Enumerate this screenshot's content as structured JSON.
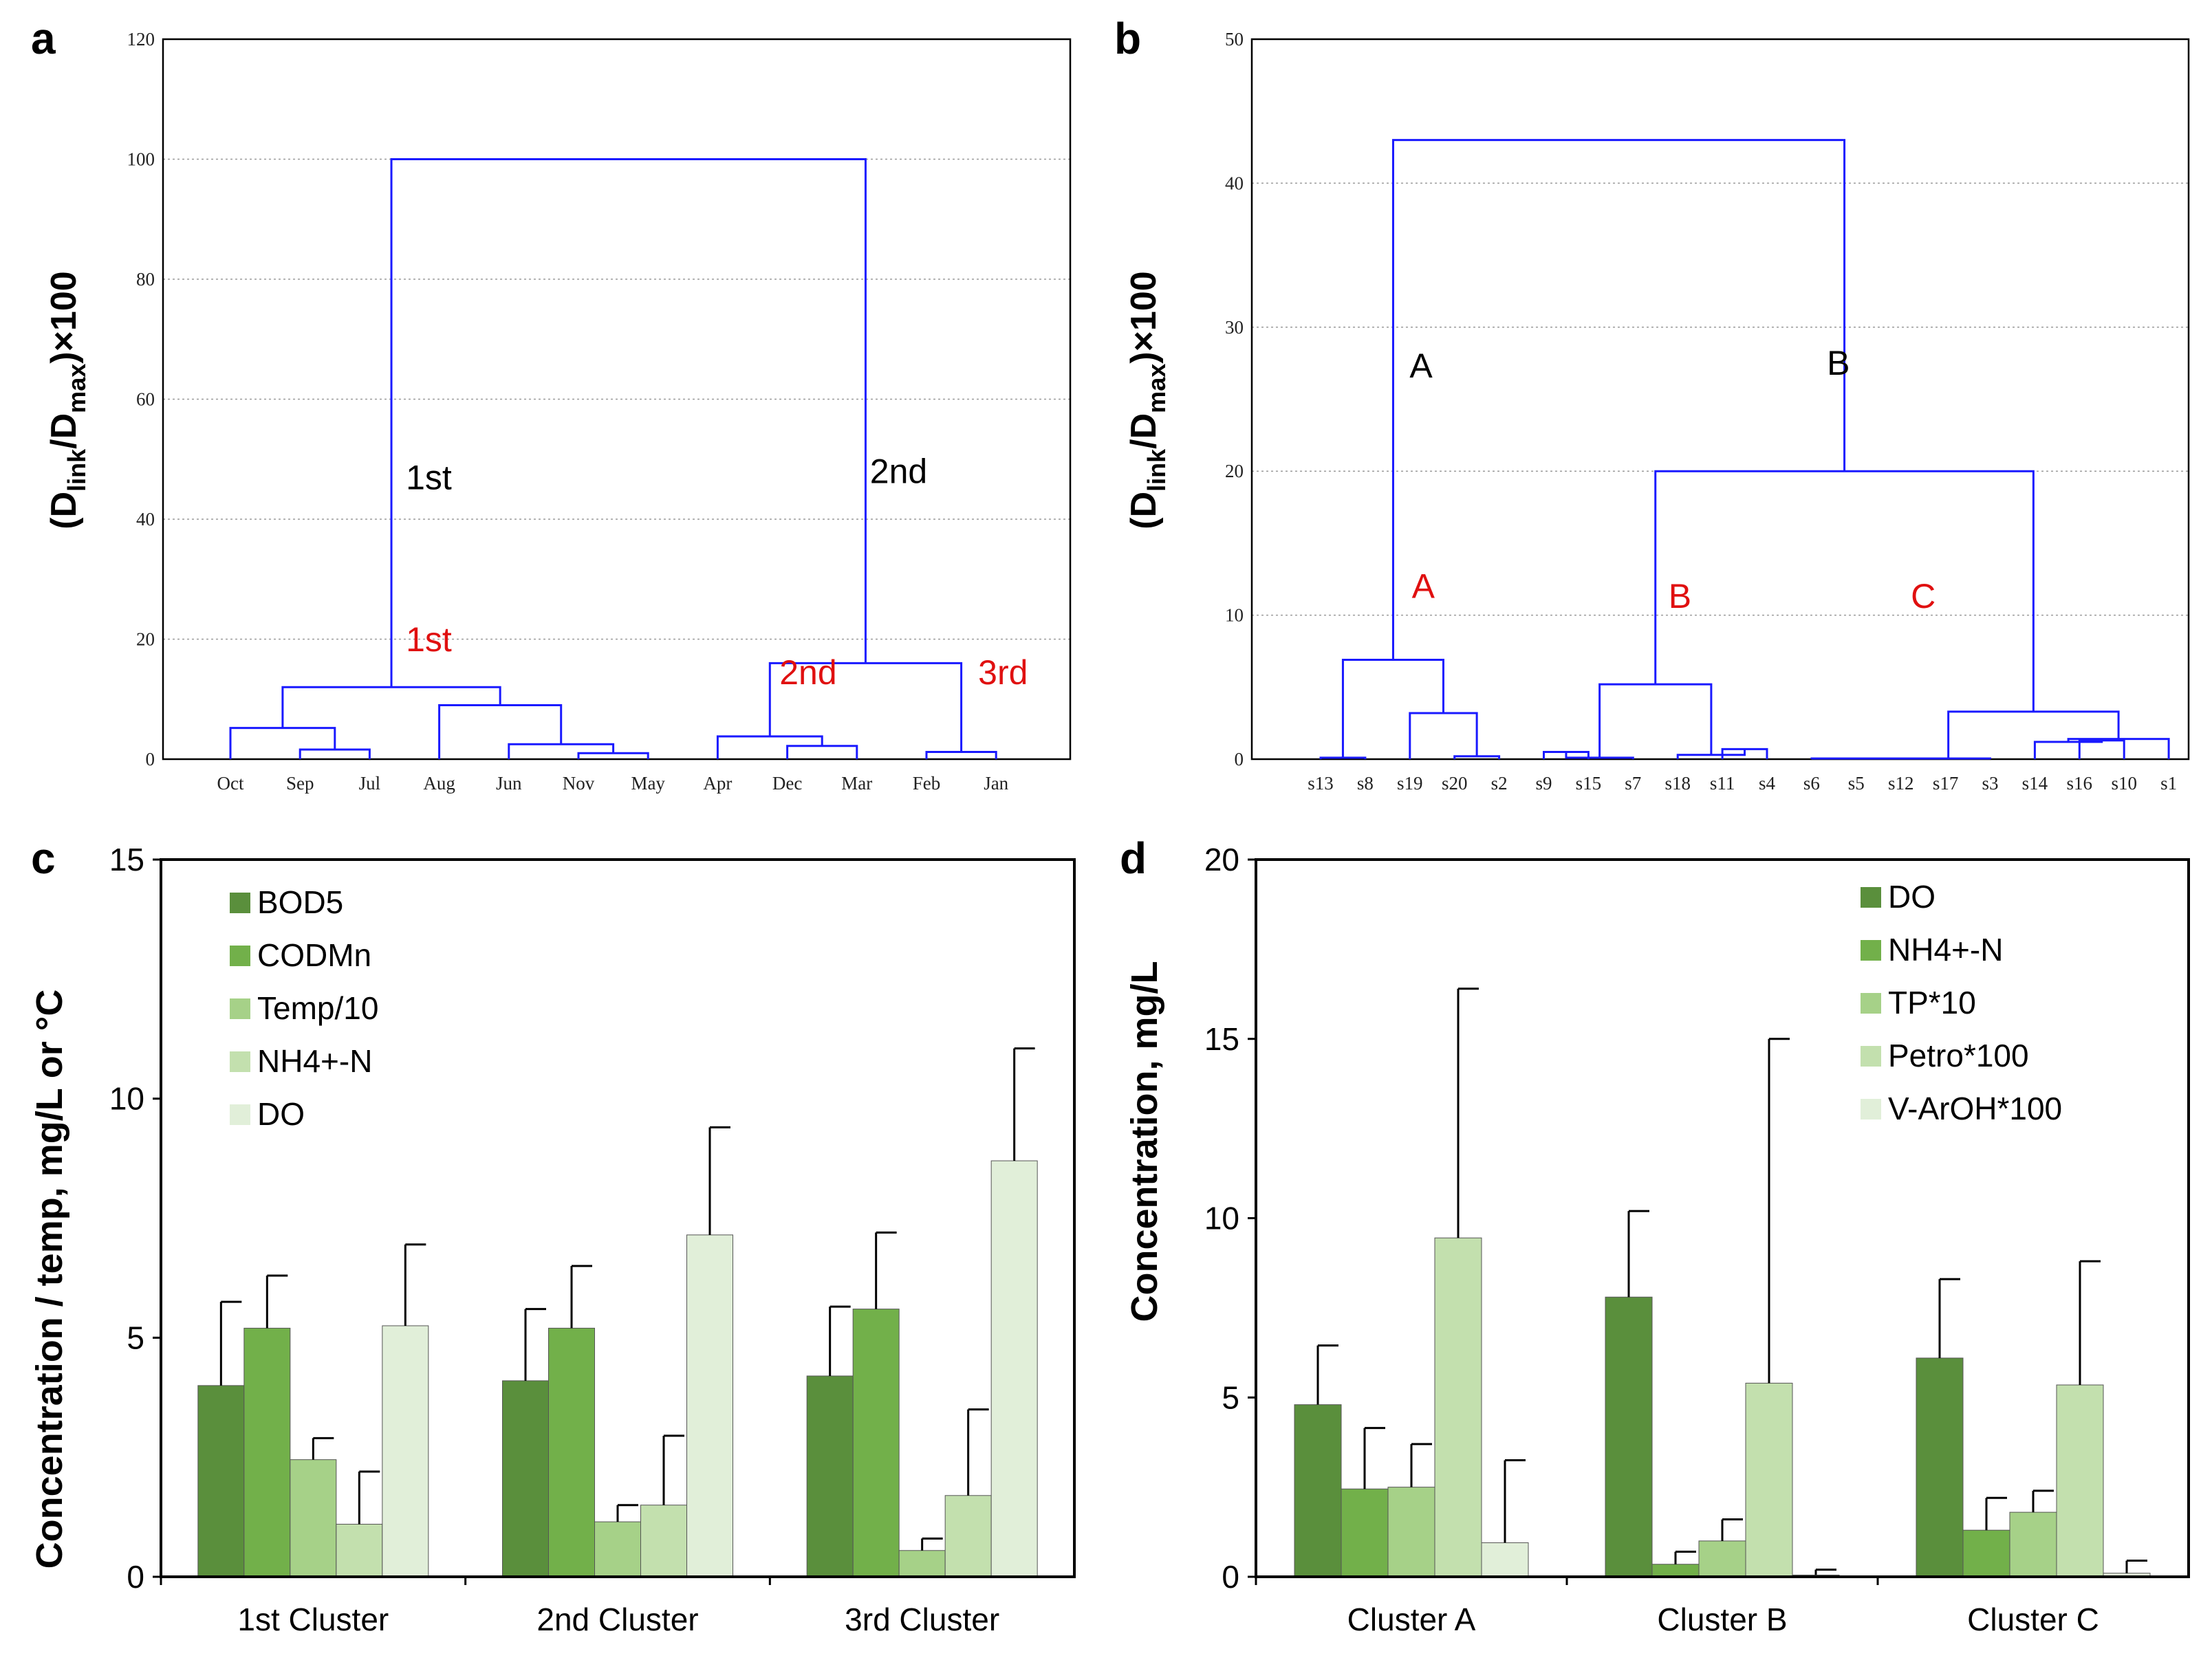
{
  "colors": {
    "dendro": "#1a1aff",
    "black": "#000000",
    "red": "#e01010",
    "grid": "#9a9a9a",
    "bars": [
      "#5a8f3c",
      "#72b04a",
      "#a6d188",
      "#c3e0ae",
      "#e1efd9"
    ]
  },
  "chart_data": [
    {
      "panel": "a",
      "type": "dendrogram",
      "ylabel": "(D_link/D_max)×100",
      "ylim": [
        0,
        120
      ],
      "yticks": [
        "0",
        "20",
        "40",
        "60",
        "80",
        "100",
        "120"
      ],
      "leaves": [
        "Oct",
        "Sep",
        "Jul",
        "Aug",
        "Jun",
        "Nov",
        "May",
        "Apr",
        "Dec",
        "Mar",
        "Feb",
        "Jan"
      ],
      "merges": [
        {
          "a": 1,
          "b": 2,
          "h": 1.6
        },
        {
          "a": 5,
          "b": 6,
          "h": 1.0
        },
        {
          "a": 4,
          "b": 13,
          "h": 2.5
        },
        {
          "a": 3,
          "b": 14,
          "h": 9.0
        },
        {
          "a": 0,
          "b": 12,
          "h": 5.2
        },
        {
          "a": 16,
          "b": 15,
          "h": 12.0
        },
        {
          "a": 8,
          "b": 9,
          "h": 2.2
        },
        {
          "a": 7,
          "b": 18,
          "h": 3.8
        },
        {
          "a": 10,
          "b": 11,
          "h": 1.2
        },
        {
          "a": 19,
          "b": 20,
          "h": 16.0
        },
        {
          "a": 17,
          "b": 21,
          "h": 100.0
        }
      ],
      "annotations": [
        {
          "text": "1st",
          "color": "black",
          "x": 2.85,
          "y": 45
        },
        {
          "text": "2nd",
          "color": "black",
          "x": 9.6,
          "y": 46
        },
        {
          "text": "1st",
          "color": "red",
          "x": 2.85,
          "y": 18
        },
        {
          "text": "2nd",
          "color": "red",
          "x": 8.3,
          "y": 12.5
        },
        {
          "text": "3rd",
          "color": "red",
          "x": 11.1,
          "y": 12.5
        }
      ]
    },
    {
      "panel": "b",
      "type": "dendrogram",
      "ylabel": "(D_link/D_max)×100",
      "ylim": [
        0,
        50
      ],
      "yticks": [
        "0",
        "10",
        "20",
        "30",
        "40",
        "50"
      ],
      "leaves": [
        "s13",
        "s8",
        "s19",
        "s20",
        "s2",
        "s9",
        "s15",
        "s7",
        "s18",
        "s11",
        "s4",
        "s6",
        "s5",
        "s12",
        "s17",
        "s3",
        "s14",
        "s16",
        "s10",
        "s1"
      ],
      "merges": [
        {
          "a": 0,
          "b": 1,
          "h": 0.1
        },
        {
          "a": 3,
          "b": 4,
          "h": 0.2
        },
        {
          "a": 2,
          "b": 21,
          "h": 3.2
        },
        {
          "a": 20,
          "b": 22,
          "h": 6.9
        },
        {
          "a": 5,
          "b": 6,
          "h": 0.5
        },
        {
          "a": 24,
          "b": 7,
          "h": 0.1
        },
        {
          "a": 9,
          "b": 10,
          "h": 0.7
        },
        {
          "a": 8,
          "b": 26,
          "h": 0.3
        },
        {
          "a": 25,
          "b": 27,
          "h": 5.2
        },
        {
          "a": 11,
          "b": 12,
          "h": 0.05
        },
        {
          "a": 29,
          "b": 13,
          "h": 0.05
        },
        {
          "a": 30,
          "b": 14,
          "h": 0.05
        },
        {
          "a": 31,
          "b": 15,
          "h": 0.05
        },
        {
          "a": 17,
          "b": 18,
          "h": 1.3
        },
        {
          "a": 16,
          "b": 33,
          "h": 1.2
        },
        {
          "a": 34,
          "b": 19,
          "h": 1.4
        },
        {
          "a": 32,
          "b": 35,
          "h": 3.3
        },
        {
          "a": 28,
          "b": 36,
          "h": 20.0
        },
        {
          "a": 23,
          "b": 37,
          "h": 43.0
        }
      ],
      "annotations": [
        {
          "text": "A",
          "color": "black",
          "x": 2.25,
          "y": 26.5
        },
        {
          "text": "B",
          "color": "black",
          "x": 11.6,
          "y": 26.7
        },
        {
          "text": "A",
          "color": "red",
          "x": 2.3,
          "y": 11.2
        },
        {
          "text": "B",
          "color": "red",
          "x": 8.05,
          "y": 10.5
        },
        {
          "text": "C",
          "color": "red",
          "x": 13.5,
          "y": 10.5
        }
      ]
    },
    {
      "panel": "c",
      "type": "bar",
      "ylabel": "Concentration / temp, mg/L or °C",
      "ylim": [
        0,
        15
      ],
      "yticks": [
        "0",
        "5",
        "10",
        "15"
      ],
      "categories": [
        "1st Cluster",
        "2nd Cluster",
        "3rd Cluster"
      ],
      "legend_position": "top-left",
      "series": [
        {
          "name": "BOD5",
          "values": [
            4.0,
            4.1,
            4.2
          ],
          "errors": [
            1.75,
            1.5,
            1.45
          ]
        },
        {
          "name": "CODMn",
          "values": [
            5.2,
            5.2,
            5.6
          ],
          "errors": [
            1.1,
            1.3,
            1.6
          ]
        },
        {
          "name": "Temp/10",
          "values": [
            2.45,
            1.15,
            0.55
          ],
          "errors": [
            0.45,
            0.35,
            0.25
          ]
        },
        {
          "name": "NH4+-N",
          "values": [
            1.1,
            1.5,
            1.7
          ],
          "errors": [
            1.1,
            1.45,
            1.8
          ]
        },
        {
          "name": "DO",
          "values": [
            5.25,
            7.15,
            8.7
          ],
          "errors": [
            1.7,
            2.25,
            2.35
          ]
        }
      ]
    },
    {
      "panel": "d",
      "type": "bar",
      "ylabel": "Concentration, mg/L",
      "ylim": [
        0,
        20
      ],
      "yticks": [
        "0",
        "5",
        "10",
        "15",
        "20"
      ],
      "categories": [
        "Cluster A",
        "Cluster B",
        "Cluster C"
      ],
      "legend_position": "top-right",
      "series": [
        {
          "name": "DO",
          "values": [
            4.8,
            7.8,
            6.1
          ],
          "errors": [
            1.65,
            2.4,
            2.2
          ]
        },
        {
          "name": "NH4+-N",
          "values": [
            2.45,
            0.35,
            1.3
          ],
          "errors": [
            1.7,
            0.35,
            0.9
          ]
        },
        {
          "name": "TP*10",
          "values": [
            2.5,
            1.0,
            1.8
          ],
          "errors": [
            1.2,
            0.6,
            0.6
          ]
        },
        {
          "name": "Petro*100",
          "values": [
            9.45,
            5.4,
            5.35
          ],
          "errors": [
            6.95,
            9.6,
            3.45
          ]
        },
        {
          "name": "V-ArOH*100",
          "values": [
            0.95,
            0.05,
            0.1
          ],
          "errors": [
            2.3,
            0.15,
            0.35
          ]
        }
      ]
    }
  ],
  "panel_letters": [
    "a",
    "b",
    "c",
    "d"
  ]
}
